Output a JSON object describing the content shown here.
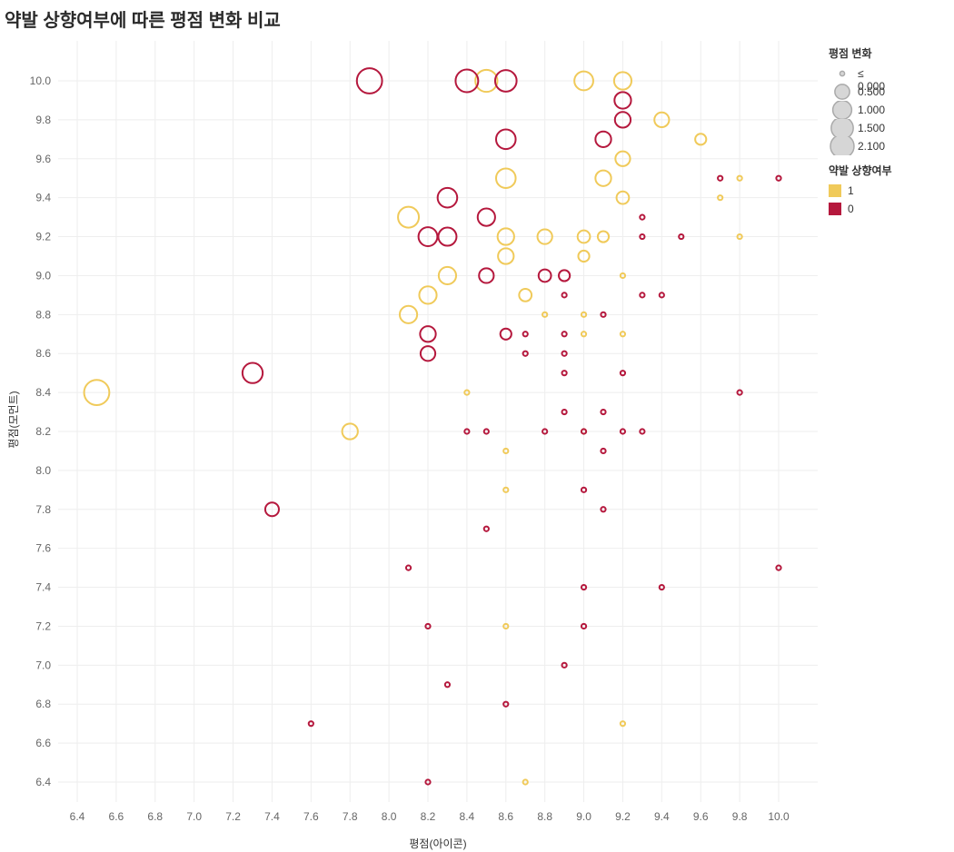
{
  "chart_data": {
    "type": "scatter",
    "title": "약발 상향여부에 따른 평점 변화 비교",
    "xlabel": "평점(아이콘)",
    "ylabel": "평점(모먼트)",
    "xlim": [
      6.3,
      10.2
    ],
    "ylim": [
      6.3,
      10.2
    ],
    "x_ticks": [
      "6.4",
      "6.6",
      "6.8",
      "7.0",
      "7.2",
      "7.4",
      "7.6",
      "7.8",
      "8.0",
      "8.2",
      "8.4",
      "8.6",
      "8.8",
      "9.0",
      "9.2",
      "9.4",
      "9.6",
      "9.8",
      "10.0"
    ],
    "y_ticks": [
      "10.0",
      "9.8",
      "9.6",
      "9.4",
      "9.2",
      "9.0",
      "8.8",
      "8.6",
      "8.4",
      "8.2",
      "8.0",
      "7.8",
      "7.6",
      "7.4",
      "7.2",
      "7.0",
      "6.8",
      "6.6",
      "6.4"
    ],
    "grid": true,
    "size_legend": {
      "title": "평점 변화",
      "entries": [
        "≤ 0.000",
        "0.500",
        "1.000",
        "1.500",
        "2.100"
      ],
      "values": [
        0,
        0.5,
        1.0,
        1.5,
        2.1
      ]
    },
    "color_legend": {
      "title": "약발 상향여부",
      "entries": [
        {
          "label": "1",
          "color": "#F0CA5A"
        },
        {
          "label": "0",
          "color": "#B5183D"
        }
      ]
    },
    "series": [
      {
        "name": "1",
        "color": "#F0CA5A",
        "points": [
          [
            8.5,
            10.0,
            1.5
          ],
          [
            9.0,
            10.0,
            1.0
          ],
          [
            9.2,
            10.0,
            0.8
          ],
          [
            9.4,
            9.8,
            0.5
          ],
          [
            9.6,
            9.7,
            0.2
          ],
          [
            9.2,
            9.6,
            0.5
          ],
          [
            8.6,
            9.5,
            1.1
          ],
          [
            9.1,
            9.5,
            0.6
          ],
          [
            9.2,
            9.4,
            0.3
          ],
          [
            9.7,
            9.4,
            0.0
          ],
          [
            9.8,
            9.5,
            0.0
          ],
          [
            8.1,
            9.3,
            1.3
          ],
          [
            8.6,
            9.2,
            0.7
          ],
          [
            8.8,
            9.2,
            0.5
          ],
          [
            9.0,
            9.2,
            0.3
          ],
          [
            9.1,
            9.2,
            0.2
          ],
          [
            9.8,
            9.2,
            0.0
          ],
          [
            8.6,
            9.1,
            0.6
          ],
          [
            9.0,
            9.1,
            0.2
          ],
          [
            8.3,
            9.0,
            0.8
          ],
          [
            9.2,
            9.0,
            0.0
          ],
          [
            8.2,
            8.9,
            0.8
          ],
          [
            8.7,
            8.9,
            0.3
          ],
          [
            8.1,
            8.8,
            0.8
          ],
          [
            8.8,
            8.8,
            0.0
          ],
          [
            9.0,
            8.8,
            0.0
          ],
          [
            9.0,
            8.7,
            0.0
          ],
          [
            9.2,
            8.7,
            0.0
          ],
          [
            6.5,
            8.4,
            2.1
          ],
          [
            8.4,
            8.4,
            0.0
          ],
          [
            7.8,
            8.2,
            0.6
          ],
          [
            9.0,
            8.2,
            0.0
          ],
          [
            8.6,
            8.1,
            0.0
          ],
          [
            8.6,
            7.9,
            0.0
          ],
          [
            8.6,
            7.2,
            0.0
          ],
          [
            9.2,
            6.7,
            0.0
          ],
          [
            8.7,
            6.4,
            0.0
          ]
        ]
      },
      {
        "name": "0",
        "color": "#B5183D",
        "points": [
          [
            7.9,
            10.0,
            2.1
          ],
          [
            8.4,
            10.0,
            1.6
          ],
          [
            8.6,
            10.0,
            1.4
          ],
          [
            9.2,
            9.9,
            0.7
          ],
          [
            9.2,
            9.8,
            0.6
          ],
          [
            8.6,
            9.7,
            1.1
          ],
          [
            9.1,
            9.7,
            0.6
          ],
          [
            9.7,
            9.5,
            0.0
          ],
          [
            10.0,
            9.5,
            0.0
          ],
          [
            8.3,
            9.4,
            1.1
          ],
          [
            8.5,
            9.3,
            0.8
          ],
          [
            9.3,
            9.3,
            0.0
          ],
          [
            8.2,
            9.2,
            1.0
          ],
          [
            8.3,
            9.2,
            0.9
          ],
          [
            9.3,
            9.2,
            0.0
          ],
          [
            9.5,
            9.2,
            0.0
          ],
          [
            8.5,
            9.0,
            0.5
          ],
          [
            8.8,
            9.0,
            0.3
          ],
          [
            8.9,
            9.0,
            0.2
          ],
          [
            8.9,
            8.9,
            0.0
          ],
          [
            9.3,
            8.9,
            0.0
          ],
          [
            9.4,
            8.9,
            0.0
          ],
          [
            9.1,
            8.8,
            0.0
          ],
          [
            8.2,
            8.7,
            0.6
          ],
          [
            8.6,
            8.7,
            0.2
          ],
          [
            8.7,
            8.7,
            0.0
          ],
          [
            8.9,
            8.7,
            0.0
          ],
          [
            8.2,
            8.6,
            0.5
          ],
          [
            8.7,
            8.6,
            0.0
          ],
          [
            8.9,
            8.6,
            0.0
          ],
          [
            7.3,
            8.5,
            1.2
          ],
          [
            8.9,
            8.5,
            0.0
          ],
          [
            9.2,
            8.5,
            0.0
          ],
          [
            9.8,
            8.4,
            0.0
          ],
          [
            8.9,
            8.3,
            0.0
          ],
          [
            9.1,
            8.3,
            0.0
          ],
          [
            8.4,
            8.2,
            0.0
          ],
          [
            8.5,
            8.2,
            0.0
          ],
          [
            8.8,
            8.2,
            0.0
          ],
          [
            9.0,
            8.2,
            0.0
          ],
          [
            9.2,
            8.2,
            0.0
          ],
          [
            9.3,
            8.2,
            0.0
          ],
          [
            9.1,
            8.1,
            0.0
          ],
          [
            9.0,
            7.9,
            0.0
          ],
          [
            7.4,
            7.8,
            0.4
          ],
          [
            9.1,
            7.8,
            0.0
          ],
          [
            8.5,
            7.7,
            0.0
          ],
          [
            8.1,
            7.5,
            0.0
          ],
          [
            10.0,
            7.5,
            0.0
          ],
          [
            9.0,
            7.4,
            0.0
          ],
          [
            9.4,
            7.4,
            0.0
          ],
          [
            8.2,
            7.2,
            0.0
          ],
          [
            9.0,
            7.2,
            0.0
          ],
          [
            8.9,
            7.0,
            0.0
          ],
          [
            8.3,
            6.9,
            0.0
          ],
          [
            8.6,
            6.8,
            0.0
          ],
          [
            7.6,
            6.7,
            0.0
          ],
          [
            8.2,
            6.4,
            0.0
          ]
        ]
      }
    ]
  }
}
